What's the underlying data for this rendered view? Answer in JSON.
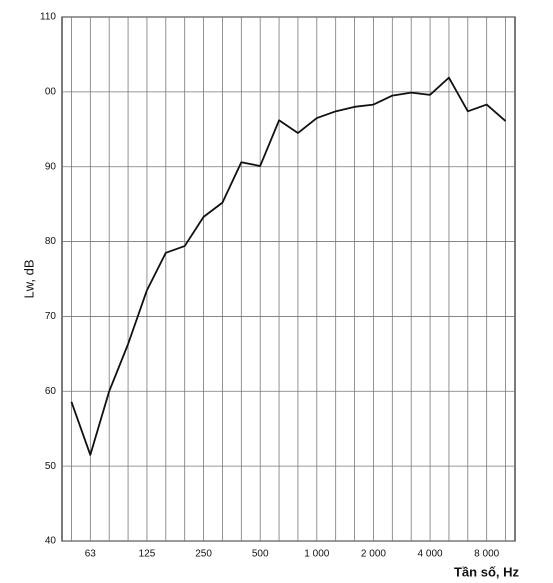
{
  "chart_data": {
    "type": "line",
    "y_label": "Lw, dB",
    "x_label": "Tần số, Hz",
    "categories": [
      null,
      "63",
      null,
      null,
      "125",
      null,
      null,
      "250",
      null,
      null,
      "500",
      null,
      null,
      "1 000",
      null,
      null,
      "2 000",
      null,
      null,
      "4 000",
      null,
      null,
      "8 000",
      null
    ],
    "series": [
      {
        "color": "#111111",
        "values": [
          58.6,
          51.5,
          60,
          66.3,
          73.5,
          78.5,
          79.4,
          83.3,
          85.2,
          90.6,
          90.1,
          96.2,
          94.5,
          96.5,
          97.4,
          98,
          98.3,
          99.5,
          99.9,
          99.6,
          101.9,
          97.4,
          98.3,
          96.1
        ]
      }
    ],
    "ylim": [
      40,
      110
    ],
    "yticks": [
      40,
      50,
      60,
      70,
      80,
      90,
      {
        "value": 100,
        "label": "00"
      },
      110
    ],
    "grid": true
  }
}
